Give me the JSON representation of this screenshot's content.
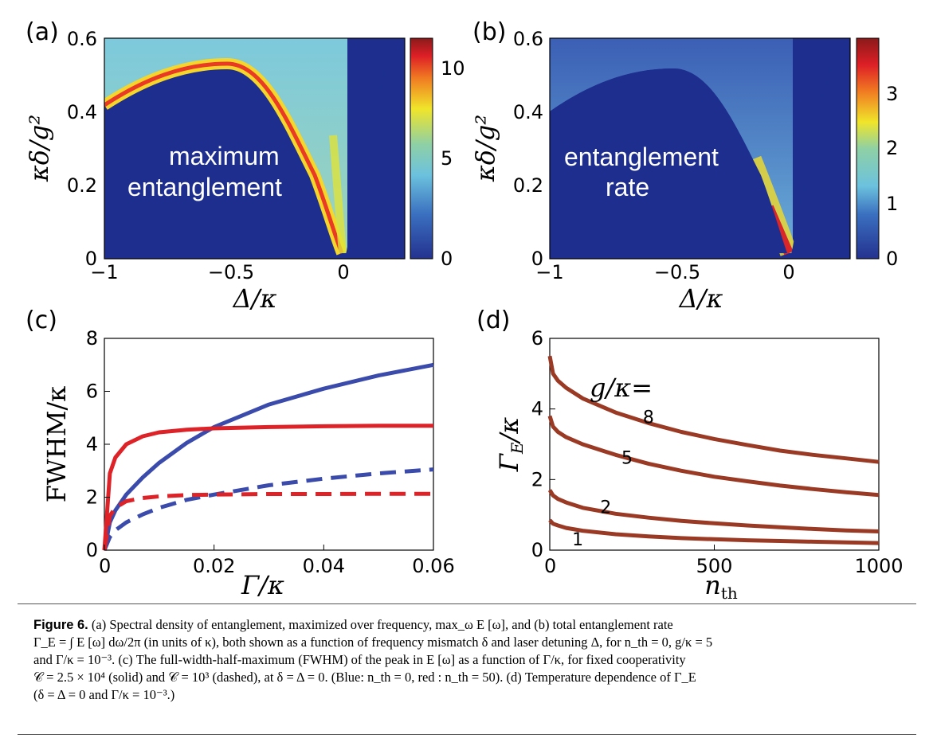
{
  "panels": [
    {
      "letter": "(a)",
      "inset_lines": [
        "maximum",
        "entanglement"
      ]
    },
    {
      "letter": "(b)",
      "inset_lines": [
        "entanglement",
        "rate"
      ]
    },
    {
      "letter": "(c)"
    },
    {
      "letter": "(d)"
    }
  ],
  "colors": {
    "map_background": "#1d2e8e",
    "blue_series": "#3b4bab",
    "red_series": "#dd2228",
    "brown_series": "#9a3a24"
  },
  "chart_data": [
    {
      "type": "heatmap",
      "panel": "a",
      "xlabel": "Δ/κ",
      "ylabel": "κδ/g²",
      "xlim": [
        -1,
        0.18
      ],
      "ylim": [
        0,
        0.6
      ],
      "x_ticks": [
        "−1",
        "−0.5",
        "0"
      ],
      "y_ticks": [
        "0",
        "0.2",
        "0.4",
        "0.6"
      ],
      "colorbar": {
        "range": [
          0,
          11
        ],
        "ticks": [
          "0",
          "5",
          "10"
        ]
      },
      "annotation": "maximum entanglement",
      "boundary_upper_branch": {
        "x": [
          -1,
          -0.8,
          -0.6,
          -0.45,
          -0.3,
          -0.15,
          -0.05,
          0
        ],
        "y": [
          0.42,
          0.47,
          0.5,
          0.505,
          0.44,
          0.3,
          0.15,
          0
        ]
      },
      "boundary_right": {
        "x": [
          0,
          0.02,
          0.04,
          0.06,
          0.08,
          0.1,
          0.12,
          0.14
        ],
        "y": [
          0,
          0.1,
          0.19,
          0.28,
          0.37,
          0.45,
          0.53,
          0.6
        ]
      },
      "peak_value": 11
    },
    {
      "type": "heatmap",
      "panel": "b",
      "xlabel": "Δ/κ",
      "ylabel": "κδ/g²",
      "xlim": [
        -1,
        0.18
      ],
      "ylim": [
        0,
        0.6
      ],
      "x_ticks": [
        "−1",
        "−0.5",
        "0"
      ],
      "y_ticks": [
        "0",
        "0.2",
        "0.4",
        "0.6"
      ],
      "colorbar": {
        "range": [
          0,
          3.9
        ],
        "ticks": [
          "0",
          "1",
          "2",
          "3"
        ]
      },
      "annotation": "entanglement rate",
      "boundary_upper_branch": {
        "x": [
          -1,
          -0.8,
          -0.6,
          -0.45,
          -0.3,
          -0.15,
          -0.05,
          0
        ],
        "y": [
          0.41,
          0.46,
          0.5,
          0.505,
          0.44,
          0.3,
          0.15,
          0
        ]
      },
      "peak_value": 3.9
    },
    {
      "type": "line",
      "panel": "c",
      "xlabel": "Γ/κ",
      "ylabel": "FWHM/κ",
      "xlim": [
        0,
        0.06
      ],
      "ylim": [
        0,
        8
      ],
      "x_ticks": [
        "0",
        "0.02",
        "0.04",
        "0.06"
      ],
      "y_ticks": [
        "0",
        "2",
        "4",
        "6",
        "8"
      ],
      "x": [
        0,
        0.001,
        0.002,
        0.004,
        0.007,
        0.01,
        0.015,
        0.02,
        0.03,
        0.04,
        0.05,
        0.06
      ],
      "series": [
        {
          "style": "solid",
          "color": "blue",
          "values": [
            0,
            1.05,
            1.5,
            2.1,
            2.75,
            3.3,
            4.05,
            4.65,
            5.5,
            6.1,
            6.6,
            7.0
          ]
        },
        {
          "style": "solid",
          "color": "red",
          "values": [
            0,
            2.9,
            3.5,
            4.0,
            4.3,
            4.45,
            4.55,
            4.6,
            4.65,
            4.68,
            4.7,
            4.7
          ]
        },
        {
          "style": "dashed",
          "color": "blue",
          "values": [
            0,
            0.5,
            0.75,
            1.05,
            1.35,
            1.6,
            1.9,
            2.1,
            2.45,
            2.7,
            2.9,
            3.05
          ]
        },
        {
          "style": "dashed",
          "color": "red",
          "values": [
            0,
            1.3,
            1.6,
            1.85,
            1.97,
            2.03,
            2.08,
            2.1,
            2.12,
            2.12,
            2.13,
            2.13
          ]
        }
      ]
    },
    {
      "type": "line",
      "panel": "d",
      "xlabel": "n_th",
      "ylabel": "Γ_E/κ",
      "xlim": [
        0,
        1000
      ],
      "ylim": [
        0,
        6
      ],
      "x_ticks": [
        "0",
        "500",
        "1000"
      ],
      "y_ticks": [
        "0",
        "2",
        "4",
        "6"
      ],
      "legend_title": "g/κ=",
      "x": [
        0,
        10,
        25,
        50,
        100,
        200,
        300,
        400,
        500,
        600,
        700,
        800,
        900,
        1000
      ],
      "series": [
        {
          "label": "8",
          "values": [
            5.5,
            5.0,
            4.8,
            4.6,
            4.3,
            3.9,
            3.6,
            3.35,
            3.15,
            2.98,
            2.82,
            2.7,
            2.6,
            2.5
          ]
        },
        {
          "label": "5",
          "values": [
            3.8,
            3.5,
            3.35,
            3.2,
            3.0,
            2.7,
            2.45,
            2.25,
            2.08,
            1.95,
            1.83,
            1.73,
            1.64,
            1.56
          ]
        },
        {
          "label": "2",
          "values": [
            1.7,
            1.55,
            1.45,
            1.35,
            1.2,
            1.03,
            0.92,
            0.83,
            0.76,
            0.7,
            0.65,
            0.6,
            0.56,
            0.53
          ]
        },
        {
          "label": "1",
          "values": [
            0.85,
            0.75,
            0.7,
            0.63,
            0.55,
            0.45,
            0.39,
            0.34,
            0.31,
            0.28,
            0.26,
            0.24,
            0.22,
            0.2
          ]
        }
      ]
    }
  ],
  "caption": {
    "label": "Figure 6.",
    "lines": [
      "(a) Spectral density of entanglement, maximized over frequency, max_ω E [ω], and (b) total entanglement rate",
      "Γ_E = ∫ E [ω] dω/2π (in units of κ), both shown as a function of frequency mismatch δ and laser detuning Δ, for n_th = 0, g/κ = 5",
      "and Γ/κ = 10⁻³. (c) The full-width-half-maximum (FWHM) of the peak in E [ω] as a function of Γ/κ, for fixed cooperativity",
      "𝒞 = 2.5 × 10⁴ (solid) and 𝒞 = 10³ (dashed), at δ = Δ = 0. (Blue: n_th = 0, red : n_th = 50). (d) Temperature dependence of Γ_E",
      "(δ = Δ = 0 and Γ/κ = 10⁻³.)"
    ]
  }
}
